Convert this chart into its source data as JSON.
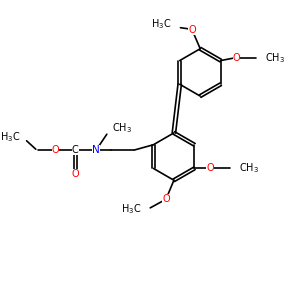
{
  "background_color": "#ffffff",
  "bond_color": "#000000",
  "bond_width": 1.2,
  "font_size": 7.0,
  "xlim": [
    -0.5,
    10.0
  ],
  "ylim": [
    -0.8,
    10.5
  ]
}
